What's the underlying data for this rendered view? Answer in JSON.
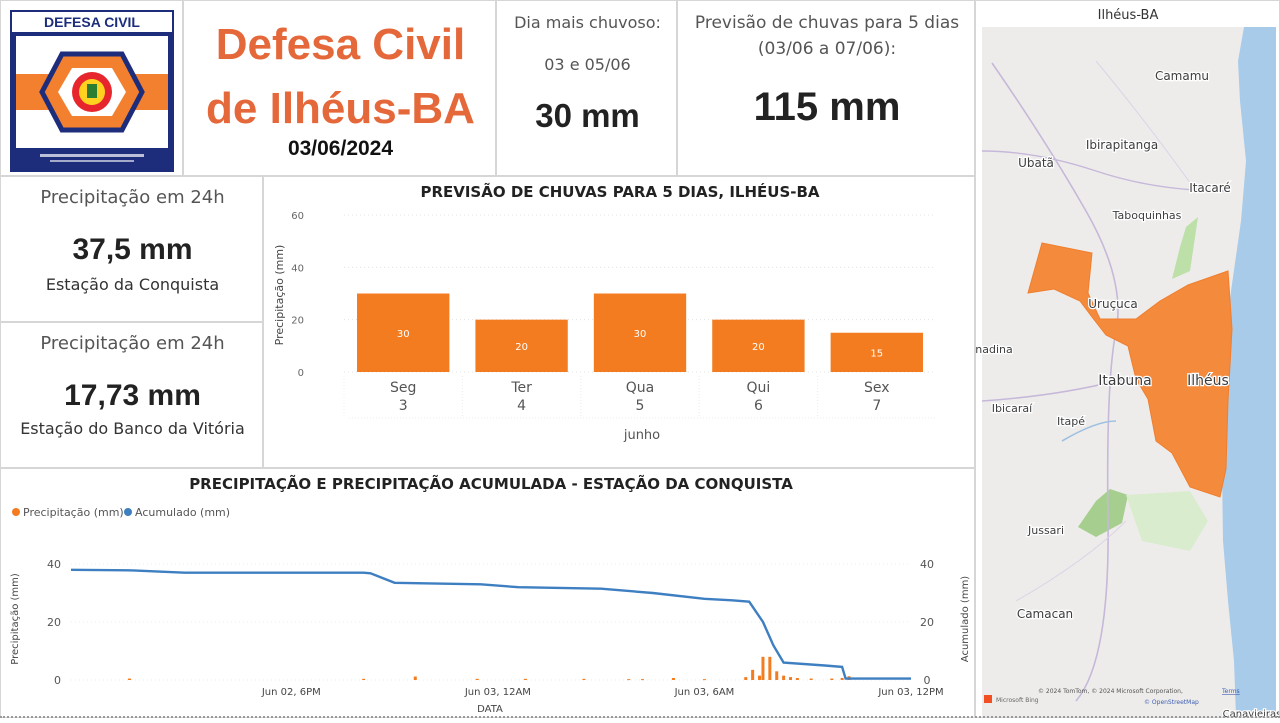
{
  "header": {
    "logo_text": "DEFESA CIVIL",
    "title_line1": "Defesa Civil",
    "title_line2": "de Ilhéus-BA",
    "date": "03/06/2024"
  },
  "rainy_day": {
    "label": "Dia mais chuvoso:",
    "days": "03 e 05/06",
    "value": "30 mm"
  },
  "forecast_total": {
    "label_line1": "Previsão de chuvas para 5 dias",
    "label_line2": "(03/06 a 07/06):",
    "value": "115 mm"
  },
  "station_cards": [
    {
      "label": "Precipitação em 24h",
      "value": "37,5 mm",
      "station": "Estação da Conquista"
    },
    {
      "label": "Precipitação em 24h",
      "value": "17,73 mm",
      "station": "Estação do Banco da Vitória"
    }
  ],
  "chart_data": [
    {
      "type": "bar",
      "title": "PREVISÃO DE CHUVAS PARA 5 DIAS, ILHÉUS-BA",
      "ylabel": "Precipitação (mm)",
      "xlabel": "junho",
      "ylim": [
        0,
        60
      ],
      "yticks": [
        0,
        20,
        40,
        60
      ],
      "categories": [
        "Seg",
        "Ter",
        "Qua",
        "Qui",
        "Sex"
      ],
      "category_days": [
        "3",
        "4",
        "5",
        "6",
        "7"
      ],
      "values": [
        30,
        20,
        30,
        20,
        15
      ],
      "bar_color": "#f47c20"
    },
    {
      "type": "line",
      "title": "PRECIPITAÇÃO E PRECIPITAÇÃO ACUMULADA - ESTAÇÃO DA CONQUISTA",
      "xlabel": "DATA",
      "ylabel_left": "Precipitação (mm)",
      "ylabel_right": "Acumulado (mm)",
      "ylim_left": [
        0,
        40
      ],
      "ylim_right": [
        0,
        40
      ],
      "yticks": [
        0,
        20,
        40
      ],
      "xtick_labels": [
        "Jun 02, 6PM",
        "Jun 03, 12AM",
        "Jun 03, 6AM",
        "Jun 03, 12PM"
      ],
      "xtick_hours": [
        18,
        24,
        30,
        36
      ],
      "xlim_hours": [
        11.6,
        36
      ],
      "legend": [
        "Precipitação (mm)",
        "Acumulado (mm)"
      ],
      "series": [
        {
          "name": "Acumulado (mm)",
          "color": "#3e7fc1",
          "points": [
            [
              11.6,
              38
            ],
            [
              13.4,
              37.8
            ],
            [
              14.9,
              37
            ],
            [
              17,
              37
            ],
            [
              20.1,
              37
            ],
            [
              20.3,
              36.8
            ],
            [
              21,
              33.5
            ],
            [
              23.5,
              33
            ],
            [
              24.6,
              32
            ],
            [
              27,
              31.5
            ],
            [
              28.5,
              30
            ],
            [
              30,
              28
            ],
            [
              30.8,
              27.5
            ],
            [
              31.3,
              27
            ],
            [
              31.7,
              20
            ],
            [
              32,
              12
            ],
            [
              32.3,
              6
            ],
            [
              33.5,
              5
            ],
            [
              34,
              4.5
            ],
            [
              34.1,
              0.5
            ],
            [
              34.5,
              0.5
            ],
            [
              36,
              0.5
            ]
          ]
        },
        {
          "name": "Precipitação (mm)",
          "color": "#f47c20",
          "bars": [
            [
              13.3,
              0.5
            ],
            [
              20.1,
              0.4
            ],
            [
              21.6,
              1.2
            ],
            [
              23.4,
              0.4
            ],
            [
              24.8,
              0.4
            ],
            [
              26.5,
              0.4
            ],
            [
              27.8,
              0.3
            ],
            [
              28.2,
              0.3
            ],
            [
              29.1,
              0.7
            ],
            [
              30.0,
              0.3
            ],
            [
              31.2,
              1
            ],
            [
              31.4,
              3.5
            ],
            [
              31.6,
              1.5
            ],
            [
              31.7,
              8
            ],
            [
              31.9,
              8
            ],
            [
              32.1,
              3
            ],
            [
              32.3,
              1.5
            ],
            [
              32.5,
              1
            ],
            [
              32.7,
              0.7
            ],
            [
              33.1,
              0.5
            ],
            [
              33.7,
              0.5
            ],
            [
              34.0,
              0.7
            ],
            [
              34.2,
              1.3
            ]
          ]
        }
      ]
    }
  ],
  "map": {
    "title": "Ilhéus-BA",
    "highlight_color": "#f48a3c",
    "places": [
      "Camamu",
      "Ibirapitanga",
      "Ubatã",
      "Itacaré",
      "Taboquinhas",
      "Uruçuca",
      "nadina",
      "Itabuna",
      "Ilhéus",
      "Ibicaraí",
      "Itapé",
      "Jussari",
      "Camacan",
      "Canavieiras"
    ],
    "attribution": "© 2024 TomTom, © 2024 Microsoft Corporation,",
    "attribution_link": "Terms",
    "osm": "© OpenStreetMap",
    "bing": "Microsoft Bing"
  }
}
